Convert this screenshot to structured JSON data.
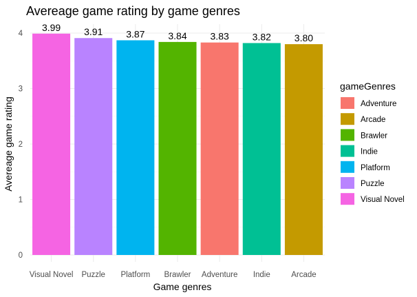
{
  "chart_data": {
    "type": "bar",
    "title": "Avereage game rating by game genres",
    "xlabel": "Game genres",
    "ylabel": "Avereage game rating",
    "ylim": [
      0,
      4.2
    ],
    "yticks": [
      0,
      1,
      2,
      3,
      4
    ],
    "grid": true,
    "legend_position": "right",
    "categories": [
      "Visual Novel",
      "Puzzle",
      "Platform",
      "Brawler",
      "Adventure",
      "Indie",
      "Arcade"
    ],
    "values": [
      3.99,
      3.91,
      3.87,
      3.84,
      3.83,
      3.82,
      3.8
    ],
    "data_labels": [
      "3.99",
      "3.91",
      "3.87",
      "3.84",
      "3.83",
      "3.82",
      "3.80"
    ],
    "bar_colors": {
      "Visual Novel": "#F564E3",
      "Puzzle": "#B983FF",
      "Platform": "#00B4EF",
      "Brawler": "#53B400",
      "Adventure": "#F8766D",
      "Indie": "#00C094",
      "Arcade": "#C49A00"
    },
    "legend": {
      "title": "gameGenres",
      "entries": [
        "Adventure",
        "Arcade",
        "Brawler",
        "Indie",
        "Platform",
        "Puzzle",
        "Visual Novel"
      ]
    }
  }
}
